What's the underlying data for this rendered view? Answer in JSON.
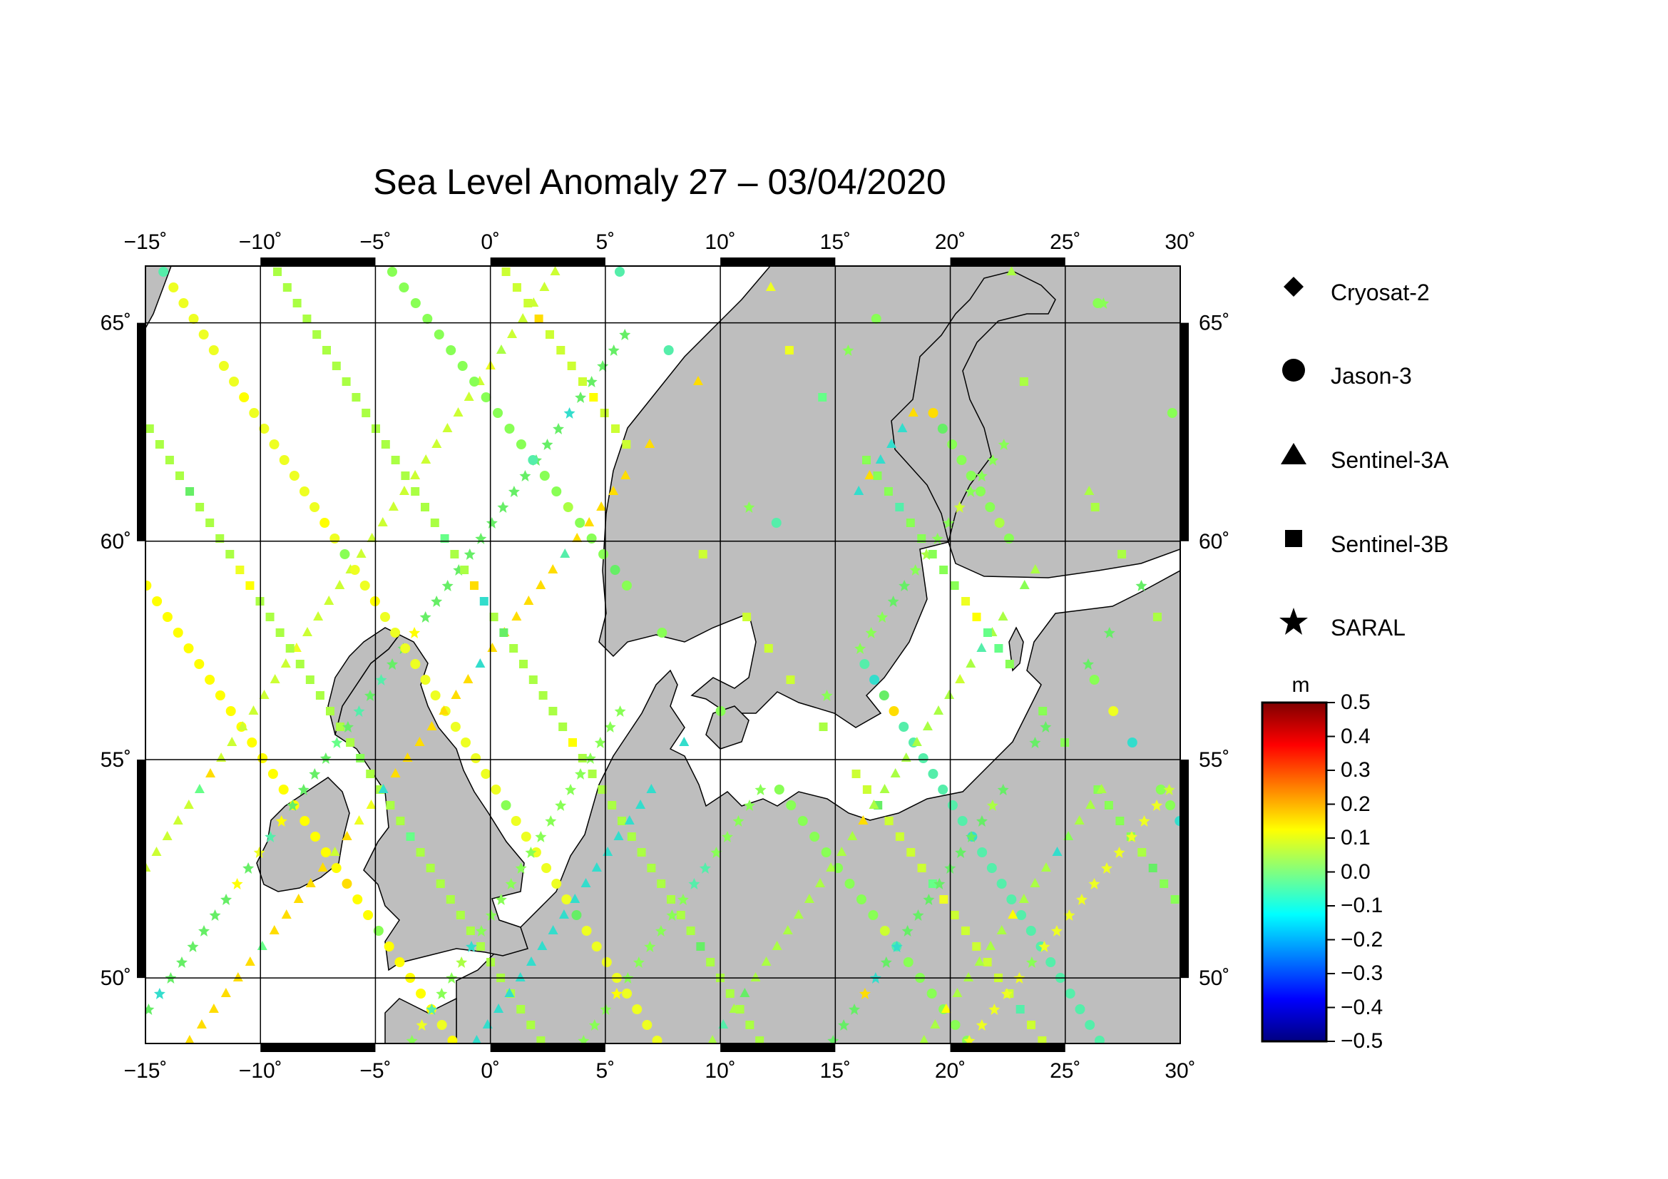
{
  "title": "Sea Level Anomaly 27 – 03/04/2020",
  "lon_ticks": [
    "−15˚",
    "−10˚",
    "−5˚",
    "0˚",
    "5˚",
    "10˚",
    "15˚",
    "20˚",
    "25˚",
    "30˚"
  ],
  "lat_ticks": [
    "65˚",
    "60˚",
    "55˚",
    "50˚"
  ],
  "legend": {
    "items": [
      {
        "label": "Cryosat-2",
        "marker": "diamond-icon"
      },
      {
        "label": "Jason-3",
        "marker": "circle-icon"
      },
      {
        "label": "Sentinel-3A",
        "marker": "triangle-icon"
      },
      {
        "label": "Sentinel-3B",
        "marker": "square-icon"
      },
      {
        "label": "SARAL",
        "marker": "star-icon"
      }
    ]
  },
  "colorbar": {
    "unit": "m",
    "ticks": [
      "0.5",
      "0.4",
      "0.3",
      "0.2",
      "0.1",
      "0.0",
      "−0.1",
      "−0.2",
      "−0.3",
      "−0.4",
      "−0.5"
    ],
    "range": [
      -0.5,
      0.5
    ],
    "colors": [
      "#000080",
      "#0000ff",
      "#0080ff",
      "#00ffff",
      "#80ff80",
      "#ffff00",
      "#ff8000",
      "#ff0000",
      "#800000"
    ]
  },
  "map": {
    "lon_range": [
      -15,
      30
    ],
    "lat_range": [
      48.5,
      66.3
    ],
    "land_color": "#bebebe",
    "ocean_color": "#ffffff"
  }
}
